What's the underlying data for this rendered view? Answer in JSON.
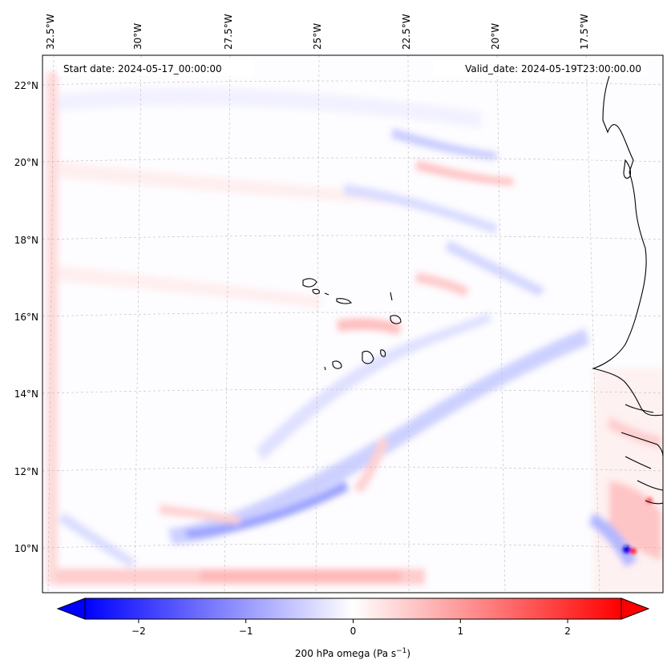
{
  "annotations": {
    "start_date": "Start date: 2024-05-17_00:00:00",
    "valid_date": "Valid_date: 2024-05-19T23:00:00.00"
  },
  "longitude_labels": [
    "32.5°W",
    "30°W",
    "27.5°W",
    "25°W",
    "22.5°W",
    "20°W",
    "17.5°W"
  ],
  "latitude_labels": [
    "22°N",
    "20°N",
    "18°N",
    "16°N",
    "14°N",
    "12°N",
    "10°N"
  ],
  "colorbar": {
    "label_main": "200 hPa omega (Pa s",
    "label_exp": "−1",
    "label_close": ")",
    "ticks": [
      "−2",
      "−1",
      "0",
      "1",
      "2"
    ],
    "tick_values": [
      -2,
      -1,
      0,
      1,
      2
    ],
    "range": [
      -2.5,
      2.5
    ],
    "colormap": "bwr",
    "extend": "both"
  },
  "colors": {
    "negative": "#0000ff",
    "zero": "#ffffff",
    "positive": "#ff0000",
    "coastline": "#000000",
    "gridline": "#bbbbbb"
  },
  "map": {
    "projection": "lambert-conformal",
    "lon_range": [
      -33,
      -15.5
    ],
    "lat_range": [
      8.8,
      22.8
    ],
    "gridlines": true
  }
}
